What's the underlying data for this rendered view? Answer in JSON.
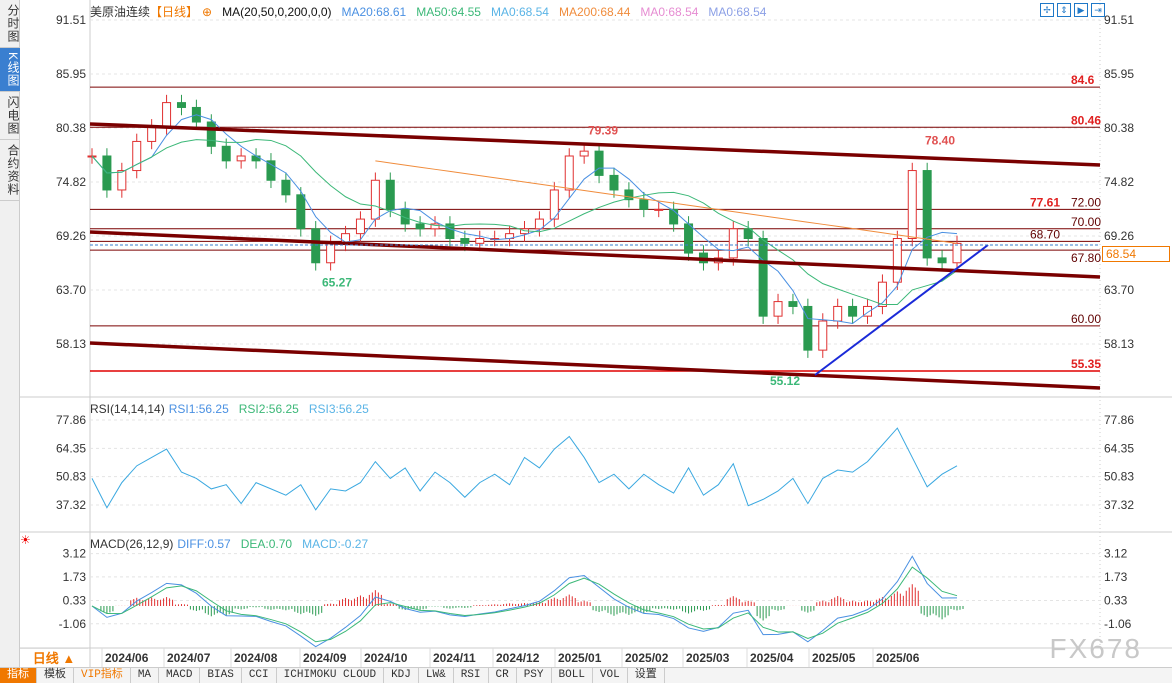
{
  "sidebar": {
    "tabs": [
      {
        "label": "分时图"
      },
      {
        "label": "K线图",
        "active": true
      },
      {
        "label": "闪电图"
      },
      {
        "label": "合约资料"
      }
    ]
  },
  "header": {
    "symbol": "美原油连续",
    "period": "【日线】",
    "indicator": "MA(20,50,0,200,0,0)",
    "ma_values": [
      {
        "text": "MA20:68.61",
        "color": "#4a90e2"
      },
      {
        "text": "MA50:64.55",
        "color": "#3cb878"
      },
      {
        "text": "MA0:68.54",
        "color": "#5ab4e6"
      },
      {
        "text": "MA200:68.44",
        "color": "#f08c3c"
      },
      {
        "text": "MA0:68.54",
        "color": "#e68cd2"
      },
      {
        "text": "MA0:68.54",
        "color": "#8ca0e6"
      }
    ]
  },
  "tools": [
    "crosshair-icon",
    "fit-vertical-icon",
    "fit-play-icon",
    "exit-right-icon"
  ],
  "price_axis": {
    "ticks": [
      "91.51",
      "85.95",
      "80.38",
      "74.82",
      "69.26",
      "63.70",
      "58.13"
    ],
    "current": "68.54"
  },
  "levels": [
    {
      "value": 84.6,
      "label": "84.6",
      "color": "#e02020"
    },
    {
      "value": 80.46,
      "label": "80.46",
      "color": "#e02020"
    },
    {
      "value": 72.0,
      "label": "72.00",
      "extra": "77.61",
      "color": "#600000"
    },
    {
      "value": 70.0,
      "label": "70.00",
      "color": "#600000"
    },
    {
      "value": 68.7,
      "label": "68.70",
      "color": "#600000"
    },
    {
      "value": 67.8,
      "label": "67.80",
      "color": "#600000"
    },
    {
      "value": 60.0,
      "label": "60.00",
      "color": "#600000"
    },
    {
      "value": 55.35,
      "label": "55.35",
      "color": "#e02020"
    }
  ],
  "annotations": [
    {
      "text": "79.39",
      "price": 79.39,
      "color": "#e05050"
    },
    {
      "text": "78.40",
      "price": 78.4,
      "color": "#e05050"
    },
    {
      "text": "65.27",
      "price": 65.27,
      "color": "#3cb878"
    },
    {
      "text": "55.12",
      "price": 55.12,
      "color": "#3cb878"
    }
  ],
  "rsi": {
    "title": "RSI(14,14,14)",
    "values": [
      {
        "text": "RSI1:56.25",
        "color": "#4a90e2"
      },
      {
        "text": "RSI2:56.25",
        "color": "#3cb878"
      },
      {
        "text": "RSI3:56.25",
        "color": "#5ab4e6"
      }
    ],
    "ticks": [
      "77.86",
      "64.35",
      "50.83",
      "37.32"
    ]
  },
  "macd": {
    "title": "MACD(26,12,9)",
    "values": [
      {
        "text": "DIFF:0.57",
        "color": "#4a90e2"
      },
      {
        "text": "DEA:0.70",
        "color": "#3cb878"
      },
      {
        "text": "MACD:-0.27",
        "color": "#5ab4e6"
      }
    ],
    "ticks": [
      "3.12",
      "1.73",
      "0.33",
      "-1.06"
    ]
  },
  "time_axis": [
    "2024/06",
    "2024/07",
    "2024/08",
    "2024/09",
    "2024/10",
    "2024/11",
    "2024/12",
    "2025/01",
    "2025/02",
    "2025/03",
    "2025/04",
    "2025/05",
    "2025/06"
  ],
  "period_selector": "日线 ▲",
  "toolbar": [
    "指标",
    "模板",
    "VIP指标",
    "MA",
    "MACD",
    "BIAS",
    "CCI",
    "ICHIMOKU CLOUD",
    "KDJ",
    "LW&",
    "RSI",
    "CR",
    "PSY",
    "BOLL",
    "VOL",
    "设置"
  ],
  "watermark": "FX678",
  "chart_data": {
    "type": "candlestick",
    "close_approx": [
      77.5,
      74,
      76,
      79,
      80.5,
      83,
      82.5,
      81,
      78.5,
      77,
      77.5,
      77,
      75,
      73.5,
      70,
      66.5,
      68.5,
      69.5,
      71,
      75,
      72,
      70.5,
      70,
      70.5,
      69,
      68.5,
      69,
      69,
      69.5,
      70,
      71,
      74,
      77.5,
      78,
      75.5,
      74,
      73,
      72,
      72,
      70.5,
      67.5,
      66.5,
      67,
      70,
      69,
      61,
      62.5,
      62,
      57.5,
      60.5,
      62,
      61,
      62,
      64.5,
      69,
      76,
      67,
      66.5,
      68.5
    ],
    "rsi_approx": [
      50,
      36,
      48,
      56,
      60,
      64,
      53,
      50,
      45,
      47,
      38,
      48,
      45,
      42,
      47,
      35,
      45,
      44,
      48,
      58,
      50,
      55,
      44,
      53,
      48,
      41,
      48,
      52,
      47,
      60,
      55,
      64,
      70,
      60,
      48,
      52,
      45,
      52,
      47,
      43,
      55,
      42,
      47,
      57,
      37,
      40,
      44,
      50,
      38,
      50,
      54,
      53,
      58,
      66,
      74,
      60,
      46,
      52,
      56
    ],
    "price_range": [
      55,
      92
    ]
  }
}
